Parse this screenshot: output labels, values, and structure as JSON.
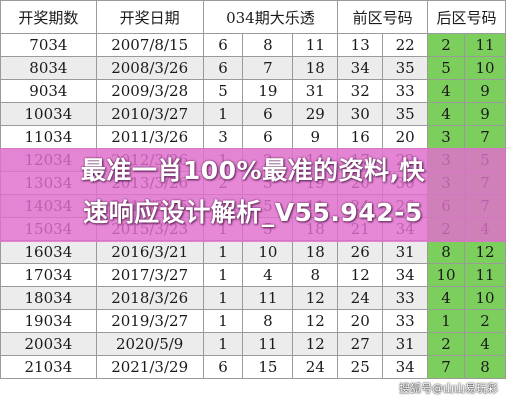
{
  "headers": [
    "开奖期数",
    "开奖日期",
    "034期大乐透",
    "",
    "",
    "前区号码",
    "",
    "后区号码",
    ""
  ],
  "rows": [
    [
      "7034",
      "2007/8/15",
      "6",
      "8",
      "11",
      "13",
      "22",
      "2",
      "11"
    ],
    [
      "8034",
      "2008/3/26",
      "6",
      "7",
      "18",
      "34",
      "35",
      "5",
      "10"
    ],
    [
      "9034",
      "2009/3/28",
      "5",
      "19",
      "31",
      "32",
      "33",
      "4",
      "9"
    ],
    [
      "10034",
      "2010/3/27",
      "1",
      "6",
      "29",
      "30",
      "35",
      "4",
      "9"
    ],
    [
      "11034",
      "2011/3/26",
      "3",
      "6",
      "9",
      "16",
      "20",
      "3",
      "7"
    ],
    [
      "12034",
      "2012/3/26",
      "1",
      "2",
      "14",
      "17",
      "22",
      "3",
      "5"
    ],
    [
      "13034",
      "2013/3/26",
      "2",
      "3",
      "19",
      "20",
      "30",
      "3",
      "7"
    ],
    [
      "14034",
      "2014/3/25",
      "4",
      "5",
      "11",
      "24",
      "26",
      "6",
      "7"
    ],
    [
      "15034",
      "2015/3/23",
      "1",
      "5",
      "18",
      "21",
      "34",
      "2",
      "4"
    ],
    [
      "16034",
      "2016/3/21",
      "1",
      "10",
      "18",
      "26",
      "31",
      "8",
      "12"
    ],
    [
      "17034",
      "2017/3/27",
      "1",
      "4",
      "8",
      "12",
      "34",
      "10",
      "11"
    ],
    [
      "18034",
      "2018/3/26",
      "1",
      "11",
      "12",
      "24",
      "33",
      "4",
      "10"
    ],
    [
      "19034",
      "2019/3/27",
      "1",
      "8",
      "12",
      "20",
      "33",
      "1",
      "2"
    ],
    [
      "20034",
      "2020/5/9",
      "1",
      "11",
      "12",
      "27",
      "31",
      "2",
      "4"
    ],
    [
      "21034",
      "2021/3/29",
      "6",
      "15",
      "24",
      "25",
      "34",
      "7",
      "8"
    ]
  ],
  "banner": {
    "line1": "最准一肖100%最准的资料,快",
    "line2": "速响应设计解析_V55.942-5"
  },
  "watermark": "搜狐号@山山易玩彩",
  "colors": {
    "green": "#7ccf5c",
    "banner": "#e26ece"
  }
}
